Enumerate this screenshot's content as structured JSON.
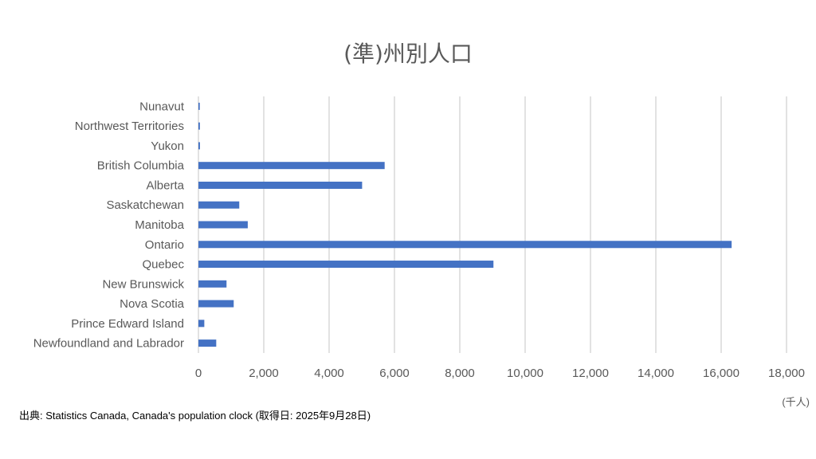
{
  "chart_data": {
    "type": "bar",
    "orientation": "horizontal",
    "title": "(準)州別人口",
    "unit_label": "(千人)",
    "categories": [
      "Newfoundland and Labrador",
      "Prince Edward Island",
      "Nova Scotia",
      "New Brunswick",
      "Quebec",
      "Ontario",
      "Manitoba",
      "Saskatchewan",
      "Alberta",
      "British Columbia",
      "Yukon",
      "Northwest Territories",
      "Nunavut"
    ],
    "values": [
      545,
      180,
      1080,
      860,
      9030,
      16320,
      1510,
      1250,
      5010,
      5700,
      47,
      45,
      41
    ],
    "xlim": [
      0,
      18000
    ],
    "xticks": [
      0,
      2000,
      4000,
      6000,
      8000,
      10000,
      12000,
      14000,
      16000,
      18000
    ],
    "xtick_labels": [
      "0",
      "2,000",
      "4,000",
      "6,000",
      "8,000",
      "10,000",
      "12,000",
      "14,000",
      "16,000",
      "18,000"
    ],
    "grid": "vertical",
    "bar_color": "#4472C4",
    "grid_color": "#d9d9d9"
  },
  "source_note": "出典: Statistics Canada, Canada's population clock (取得日: 2025年9月28日)"
}
